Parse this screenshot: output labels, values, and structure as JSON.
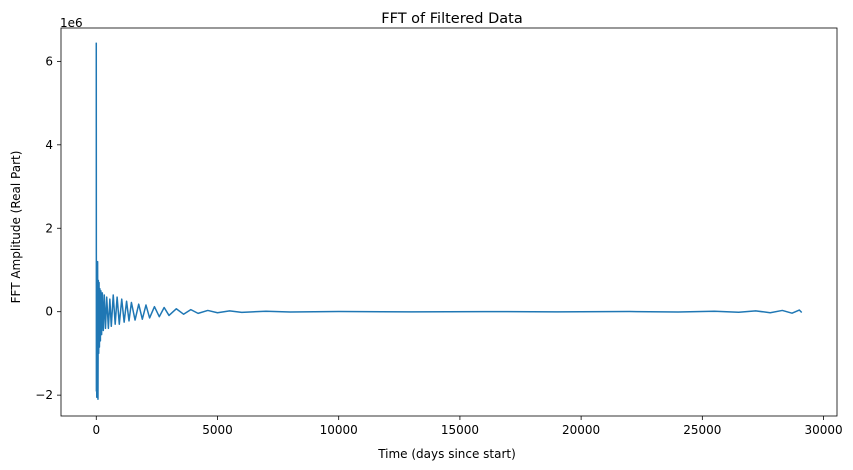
{
  "chart_data": {
    "type": "line",
    "title": "FFT of Filtered Data",
    "xlabel": "Time (days since start)",
    "ylabel": "FFT Amplitude (Real Part)",
    "y_offset_label": "1e6",
    "xlim": [
      -1455,
      30555
    ],
    "ylim": [
      -2.5,
      6.8
    ],
    "y_scale_factor": 1000000,
    "xticks": [
      0,
      5000,
      10000,
      15000,
      20000,
      25000,
      30000
    ],
    "xtick_labels": [
      "0",
      "5000",
      "10000",
      "15000",
      "20000",
      "25000",
      "30000"
    ],
    "yticks": [
      -2,
      0,
      2,
      4,
      6
    ],
    "ytick_labels": [
      "−2",
      "0",
      "2",
      "4",
      "6"
    ],
    "grid": false,
    "legend": "none",
    "series": [
      {
        "color": "#1f77b4",
        "points": [
          [
            0,
            6.45
          ],
          [
            5,
            -1.9
          ],
          [
            12,
            1.2
          ],
          [
            20,
            -2.05
          ],
          [
            30,
            0.9
          ],
          [
            40,
            -1.5
          ],
          [
            55,
            1.2
          ],
          [
            70,
            -2.1
          ],
          [
            85,
            0.75
          ],
          [
            100,
            -1.0
          ],
          [
            115,
            0.7
          ],
          [
            130,
            -0.85
          ],
          [
            150,
            0.55
          ],
          [
            170,
            -0.7
          ],
          [
            190,
            0.5
          ],
          [
            220,
            -0.55
          ],
          [
            250,
            0.45
          ],
          [
            290,
            -0.45
          ],
          [
            330,
            0.4
          ],
          [
            380,
            -0.4
          ],
          [
            430,
            0.35
          ],
          [
            500,
            -0.4
          ],
          [
            560,
            0.3
          ],
          [
            620,
            -0.35
          ],
          [
            700,
            0.4
          ],
          [
            780,
            -0.3
          ],
          [
            860,
            0.35
          ],
          [
            950,
            -0.3
          ],
          [
            1050,
            0.3
          ],
          [
            1150,
            -0.25
          ],
          [
            1250,
            0.25
          ],
          [
            1350,
            -0.22
          ],
          [
            1450,
            0.22
          ],
          [
            1600,
            -0.2
          ],
          [
            1750,
            0.18
          ],
          [
            1900,
            -0.18
          ],
          [
            2050,
            0.16
          ],
          [
            2200,
            -0.15
          ],
          [
            2400,
            0.12
          ],
          [
            2600,
            -0.12
          ],
          [
            2800,
            0.1
          ],
          [
            3000,
            -0.09
          ],
          [
            3300,
            0.07
          ],
          [
            3600,
            -0.06
          ],
          [
            3900,
            0.05
          ],
          [
            4200,
            -0.04
          ],
          [
            4600,
            0.03
          ],
          [
            5000,
            -0.025
          ],
          [
            5500,
            0.02
          ],
          [
            6000,
            -0.015
          ],
          [
            7000,
            0.01
          ],
          [
            8000,
            -0.008
          ],
          [
            10000,
            0.005
          ],
          [
            13000,
            -0.004
          ],
          [
            16000,
            0.003
          ],
          [
            19000,
            -0.003
          ],
          [
            22000,
            0.004
          ],
          [
            24000,
            -0.006
          ],
          [
            25500,
            0.01
          ],
          [
            26500,
            -0.012
          ],
          [
            27200,
            0.02
          ],
          [
            27800,
            -0.025
          ],
          [
            28300,
            0.03
          ],
          [
            28700,
            -0.035
          ],
          [
            29000,
            0.04
          ],
          [
            29100,
            -0.02
          ]
        ]
      }
    ]
  }
}
